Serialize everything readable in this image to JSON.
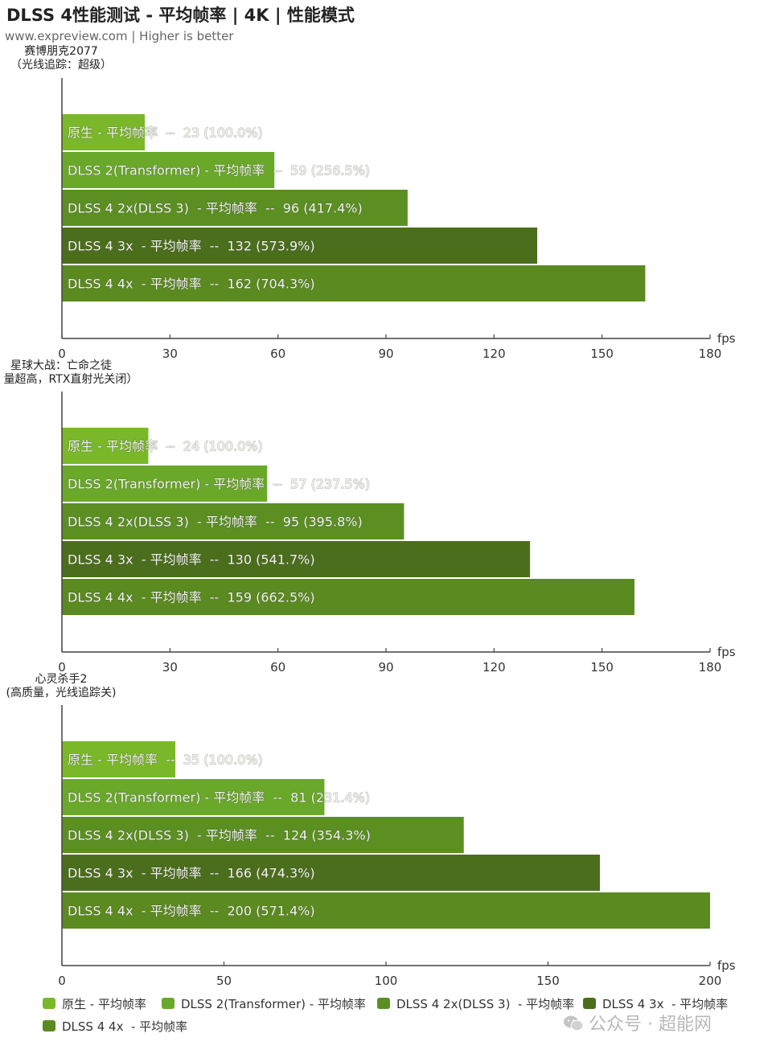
{
  "title": "DLSS 4性能测试 - 平均帧率 | 4K | 性能模式",
  "subtitle": "www.expreview.com | Higher is better",
  "watermark": "公众号 · 超能网",
  "colors": {
    "native": "#7ab82a",
    "dlss2": "#6aa82a",
    "dlss4_2x": "#5b8f22",
    "dlss4_3x": "#4b6e1c",
    "dlss4_4x": "#5b8a20",
    "axis": "#444444",
    "label_light": "#f2f2f2"
  },
  "chart_data": [
    {
      "type": "bar",
      "orientation": "horizontal",
      "game": [
        "赛博朋克2077",
        "（光线追踪：超级）"
      ],
      "xlabel": "fps",
      "xlim": [
        0,
        180
      ],
      "xticks": [
        0,
        30,
        60,
        90,
        120,
        150,
        180
      ],
      "bars": [
        {
          "label": "原生 - 平均帧率  --  23 (100.0%)",
          "value": 23
        },
        {
          "label": "DLSS 2(Transformer) - 平均帧率  --  59 (256.5%)",
          "value": 59
        },
        {
          "label": "DLSS 4 2x(DLSS 3)  - 平均帧率  --  96 (417.4%)",
          "value": 96
        },
        {
          "label": "DLSS 4 3x  - 平均帧率  --  132 (573.9%)",
          "value": 132
        },
        {
          "label": "DLSS 4 4x  - 平均帧率  --  162 (704.3%)",
          "value": 162
        }
      ]
    },
    {
      "type": "bar",
      "orientation": "horizontal",
      "game": [
        "星球大战：亡命之徒",
        "量超高，RTX直射光关闭）"
      ],
      "xlabel": "fps",
      "xlim": [
        0,
        180
      ],
      "xticks": [
        0,
        30,
        60,
        90,
        120,
        150,
        180
      ],
      "bars": [
        {
          "label": "原生 - 平均帧率  --  24 (100.0%)",
          "value": 24
        },
        {
          "label": "DLSS 2(Transformer) - 平均帧率  --  57 (237.5%)",
          "value": 57
        },
        {
          "label": "DLSS 4 2x(DLSS 3)  - 平均帧率  --  95 (395.8%)",
          "value": 95
        },
        {
          "label": "DLSS 4 3x  - 平均帧率  --  130 (541.7%)",
          "value": 130
        },
        {
          "label": "DLSS 4 4x  - 平均帧率  --  159 (662.5%)",
          "value": 159
        }
      ]
    },
    {
      "type": "bar",
      "orientation": "horizontal",
      "game": [
        "心灵杀手2",
        "(高质量，光线追踪关)"
      ],
      "xlabel": "fps",
      "xlim": [
        0,
        200
      ],
      "xticks": [
        0,
        50,
        100,
        150,
        200
      ],
      "bars": [
        {
          "label": "原生 - 平均帧率  --  35 (100.0%)",
          "value": 35
        },
        {
          "label": "DLSS 2(Transformer) - 平均帧率  --  81 (231.4%)",
          "value": 81
        },
        {
          "label": "DLSS 4 2x(DLSS 3)  - 平均帧率  --  124 (354.3%)",
          "value": 124
        },
        {
          "label": "DLSS 4 3x  - 平均帧率  --  166 (474.3%)",
          "value": 166
        },
        {
          "label": "DLSS 4 4x  - 平均帧率  --  200 (571.4%)",
          "value": 200
        }
      ]
    }
  ],
  "legend": [
    {
      "name": "原生 - 平均帧率",
      "color_key": "native"
    },
    {
      "name": "DLSS 2(Transformer) - 平均帧率",
      "color_key": "dlss2"
    },
    {
      "name": "DLSS 4 2x(DLSS 3)  - 平均帧率",
      "color_key": "dlss4_2x"
    },
    {
      "name": "DLSS 4 3x  - 平均帧率",
      "color_key": "dlss4_3x"
    },
    {
      "name": "DLSS 4 4x  - 平均帧率",
      "color_key": "dlss4_4x"
    }
  ]
}
